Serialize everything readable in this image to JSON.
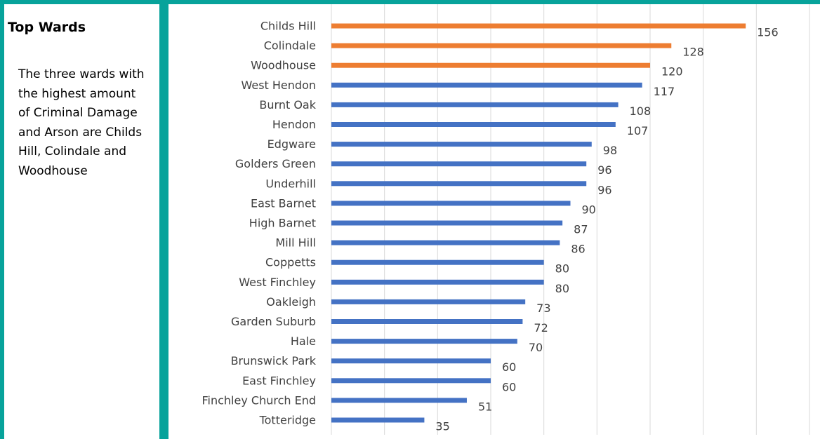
{
  "sidebar": {
    "title": "Top Wards",
    "body": "The three wards with the highest amount of Criminal Damage and Arson are Childs Hill, Colindale and Woodhouse"
  },
  "colors": {
    "highlight": "#ed7d31",
    "default": "#4472c4",
    "frame": "#07a39b",
    "grid": "#d9d9d9",
    "label": "#404040"
  },
  "chart_data": {
    "type": "bar",
    "orientation": "horizontal",
    "title": "",
    "xlabel": "",
    "ylabel": "",
    "xlim": [
      0,
      180
    ],
    "grid": "vertical",
    "categories": [
      "Childs Hill",
      "Colindale",
      "Woodhouse",
      "West Hendon",
      "Burnt Oak",
      "Hendon",
      "Edgware",
      "Golders Green",
      "Underhill",
      "East Barnet",
      "High Barnet",
      "Mill Hill",
      "Coppetts",
      "West Finchley",
      "Oakleigh",
      "Garden Suburb",
      "Hale",
      "Brunswick Park",
      "East Finchley",
      "Finchley Church End",
      "Totteridge"
    ],
    "values": [
      156,
      128,
      120,
      117,
      108,
      107,
      98,
      96,
      96,
      90,
      87,
      86,
      80,
      80,
      73,
      72,
      70,
      60,
      60,
      51,
      35
    ],
    "highlighted": [
      "Childs Hill",
      "Colindale",
      "Woodhouse"
    ]
  }
}
